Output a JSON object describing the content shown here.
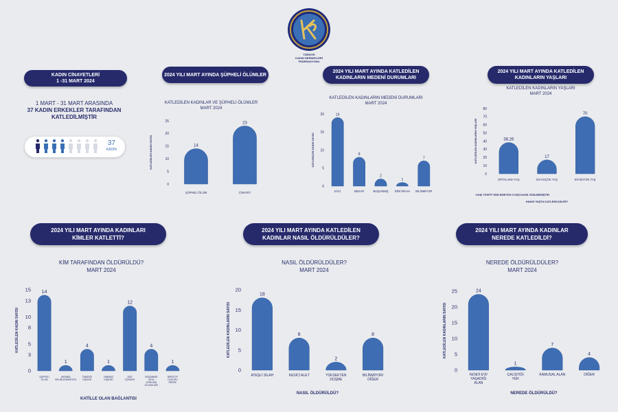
{
  "federation": {
    "line1": "TÜRKİYE",
    "line2": "KADIN DERNEKLERİ",
    "line3": "FEDERASYONU"
  },
  "summary": {
    "pill_line1": "KADIN CİNAYETLERİ",
    "pill_line2": "1 -31 MART 2024",
    "text_line1": "1 MART - 31 MART ARASINDA",
    "text_line2": "37 KADIN ERKEKLER TARAFINDAN",
    "text_line3": "KATLEDİLMİŞTİR",
    "count": "37",
    "count_label": "KADIN",
    "filled_icons": 4,
    "total_icons": 8
  },
  "pills": {
    "supheli": "2024 YILI MART AYINDA ŞÜPHELİ ÖLÜMLER",
    "medeni_l1": "2024 YILI MART AYINDA KATLEDİLEN",
    "medeni_l2": "KADINLARIN MEDENİ DURUMLARI",
    "yas_l1": "2024 YILI MART AYINDA KATLEDİLEN",
    "yas_l2": "KADINLARIN YAŞLARI",
    "kim_l1": "2024 YILI MART AYINDA KADINLARI",
    "kim_l2": "KİMLER KATLETTİ?",
    "nasil_l1": "2024 YILI MART AYINDA KATLEDİLEN",
    "nasil_l2": "KADINLAR NASIL ÖLDÜRÜLDÜLER?",
    "nerede_l1": "2024 YILI MART AYINDA KADINLAR",
    "nerede_l2": "NEREDE KATLEDİLDİ?"
  },
  "age_note": "•YAŞI TESPİT EDİLEMEYEN 3 KİŞİ DAHİL EDİLMEMİŞTİR.",
  "chart_data": [
    {
      "id": "supheli",
      "type": "bar",
      "title": "KATLEDİLEN KADINLAR VE ŞÜPHELİ ÖLÜMLER",
      "subtitle": "MART 2024",
      "ylabel": "KATLEDİLEN KADIN SAYISI",
      "xlabel": "",
      "categories": [
        "ŞÜPHELİ ÖLÜM",
        "CİNAYET"
      ],
      "values": [
        14,
        23
      ],
      "value_labels": [
        "14",
        "23"
      ],
      "ylim": [
        0,
        25
      ],
      "yticks": [
        0,
        5,
        10,
        15,
        20,
        25
      ],
      "grid": false
    },
    {
      "id": "medeni",
      "type": "bar",
      "title": "KATLEDİLEN KADINLARIN MEDENİ DURUMLARI",
      "subtitle": "MART 2024",
      "ylabel": "KATLEDİLEN KADIN SAYISI",
      "xlabel": "",
      "categories": [
        "EVLİ",
        "BEKAR",
        "BOŞANMIŞ",
        "DİNİ NİKAH",
        "BİLİNMİYOR"
      ],
      "values": [
        19,
        8,
        2,
        1,
        7
      ],
      "value_labels": [
        "19",
        "8",
        "2",
        "1",
        "7"
      ],
      "ylim": [
        0,
        20
      ],
      "yticks": [
        0,
        5,
        10,
        15,
        20
      ],
      "grid": false
    },
    {
      "id": "yas",
      "type": "bar",
      "title": "KATLEDİLEN KADINLARIN YAŞLARI",
      "subtitle": "MART 2024",
      "ylabel": "KATLEDİLEN KADINLARIN YAŞLARI",
      "xlabel": "HANGİ YAŞTA KATLEDİLDİLER?",
      "categories": [
        "ORTALAMA YAŞ",
        "EN KÜÇÜK YAŞ",
        "EN BÜYÜK YAŞ"
      ],
      "values": [
        38.26,
        17,
        70
      ],
      "value_labels": [
        "38,26",
        "17",
        "70"
      ],
      "ylim": [
        0,
        80
      ],
      "yticks": [
        0,
        10,
        20,
        30,
        40,
        50,
        60,
        70,
        80
      ],
      "grid": false
    },
    {
      "id": "kim",
      "type": "bar",
      "title": "KİM TARAFINDAN ÖLDÜRÜLDÜ?",
      "subtitle": "MART 2024",
      "ylabel": "KATLEDİLEN KADIN SAYISI",
      "xlabel": "KATİLLE OLAN BAĞLANTISI",
      "categories": [
        "ŞÜPHELİ ÖLÜM",
        "AKRABA BELİRLENEMEYEN",
        "TANIDIĞI KİŞİLER",
        "YABANCI KİŞİLER",
        "AİLE İÇİNDEN",
        "BOŞANMIŞ VEYA AYRILMIŞ OLDUKLARI",
        "BİRLİKTE OLDUĞU ERKEK"
      ],
      "values": [
        14,
        1,
        4,
        1,
        12,
        4,
        1
      ],
      "value_labels": [
        "14",
        "1",
        "4",
        "1",
        "12",
        "4",
        "1"
      ],
      "ylim": [
        0,
        15
      ],
      "yticks": [
        0,
        3,
        5,
        8,
        10,
        13,
        15
      ],
      "grid": false
    },
    {
      "id": "nasil",
      "type": "bar",
      "title": "NASIL ÖLDÜRÜLDÜLER?",
      "subtitle": "MART 2024",
      "ylabel": "KATLEDİLEN KADINLARIN SAYISI",
      "xlabel": "NASIL ÖLDÜRÜLDÜ?",
      "categories": [
        "ATEŞLİ SİLAH",
        "KESİCİ ALET",
        "YÜKSEKTEN DÜŞME",
        "BİLİNMİYOR/ DİĞER"
      ],
      "values": [
        18,
        8,
        2,
        8
      ],
      "value_labels": [
        "18",
        "8",
        "2",
        "8"
      ],
      "ylim": [
        0,
        20
      ],
      "yticks": [
        0,
        5,
        10,
        15,
        20
      ],
      "grid": false
    },
    {
      "id": "nerede",
      "type": "bar",
      "title": "NEREDE ÖLDÜRÜLDÜLER?",
      "subtitle": "MART 2024",
      "ylabel": "KATLEDİLEN KADINLARIN SAYISI",
      "xlabel": "NEREDE ÖLDÜRÜLDÜ?",
      "categories": [
        "KENDİ EVİ/ YAŞADIĞI ALAN",
        "ÇALIŞTIĞI YER",
        "KAMUSAL ALAN",
        "DİĞER"
      ],
      "values": [
        24,
        1,
        7,
        4
      ],
      "value_labels": [
        "24",
        "1",
        "7",
        "4"
      ],
      "ylim": [
        0,
        25
      ],
      "yticks": [
        0,
        5,
        10,
        15,
        20,
        25
      ],
      "grid": false
    }
  ]
}
